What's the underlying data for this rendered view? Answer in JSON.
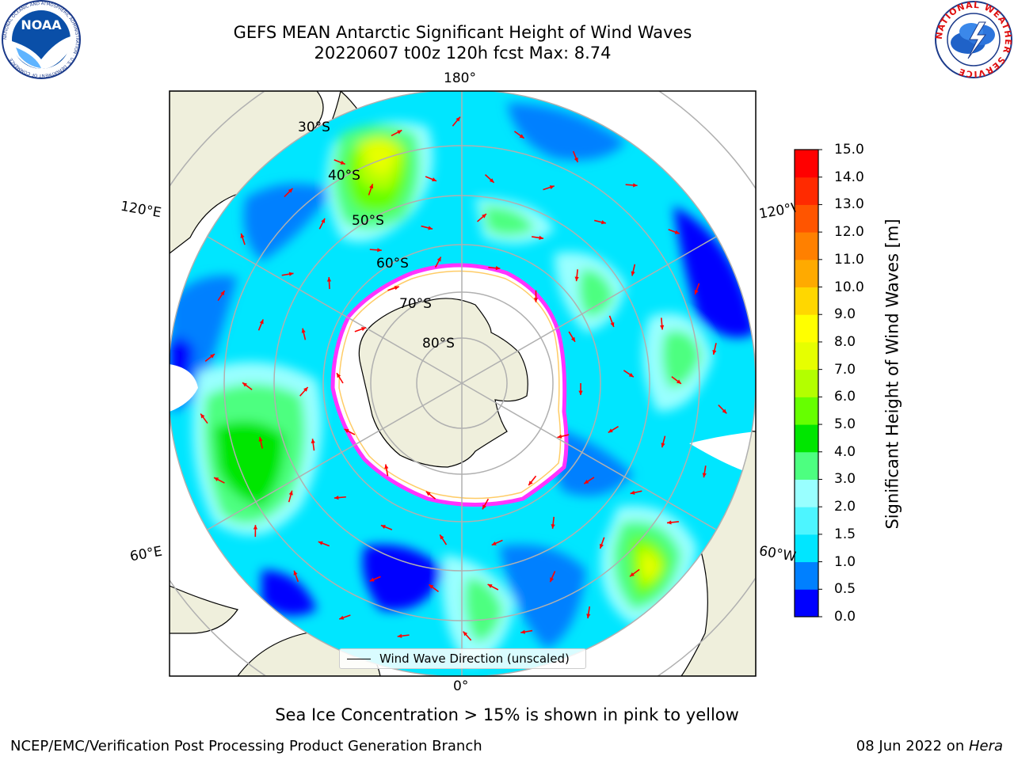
{
  "header": {
    "title_line1": "GEFS MEAN Antarctic Significant Height of Wind Waves",
    "title_line2": "20220607 t00z 120h fcst   Max: 8.74"
  },
  "logos": {
    "noaa": {
      "text": "NOAA",
      "ring_text": "NATIONAL OCEANIC AND ATMOSPHERIC ADMINISTRATION · U.S. DEPARTMENT OF COMMERCE",
      "icon": "noaa-logo-icon"
    },
    "nws": {
      "ring_text": "NATIONAL WEATHER SERVICE",
      "icon": "nws-logo-icon"
    }
  },
  "map": {
    "projection": "south-polar-stereographic",
    "longitude_labels": {
      "top": "180°",
      "bottom": "0°",
      "upper_left": "120°E",
      "lower_left": "60°E",
      "upper_right": "120°W",
      "lower_right": "60°W"
    },
    "latitude_labels": [
      "30°S",
      "40°S",
      "50°S",
      "60°S",
      "70°S",
      "80°S"
    ],
    "legend": {
      "label": "Wind Wave Direction (unscaled)"
    },
    "colors": {
      "land": "#efefdc",
      "sea_ice": "#ffffff",
      "sea_ice_edge": "#ff33ff",
      "arrow": "#ff0000",
      "grid": "#b0b0b0"
    }
  },
  "colorbar": {
    "label": "Significant Height of Wind Waves [m]",
    "ticks": [
      "0.0",
      "0.5",
      "1.0",
      "1.5",
      "2.0",
      "3.0",
      "4.0",
      "5.0",
      "6.0",
      "7.0",
      "8.0",
      "9.0",
      "10.0",
      "11.0",
      "12.0",
      "13.0",
      "14.0",
      "15.0"
    ],
    "colors": [
      "#0000ff",
      "#0080ff",
      "#00e6ff",
      "#4df5ff",
      "#99ffff",
      "#4dff80",
      "#00e600",
      "#66ff00",
      "#b3ff00",
      "#e6ff00",
      "#ffff00",
      "#ffd700",
      "#ffaa00",
      "#ff8000",
      "#ff5500",
      "#ff2a00",
      "#ff0000"
    ]
  },
  "footer": {
    "sea_ice_note": "Sea Ice Concentration > 15% is shown in pink to yellow",
    "credit": "NCEP/EMC/Verification Post Processing Product Generation Branch",
    "date": "08 Jun 2022 on ",
    "system": "Hera"
  }
}
